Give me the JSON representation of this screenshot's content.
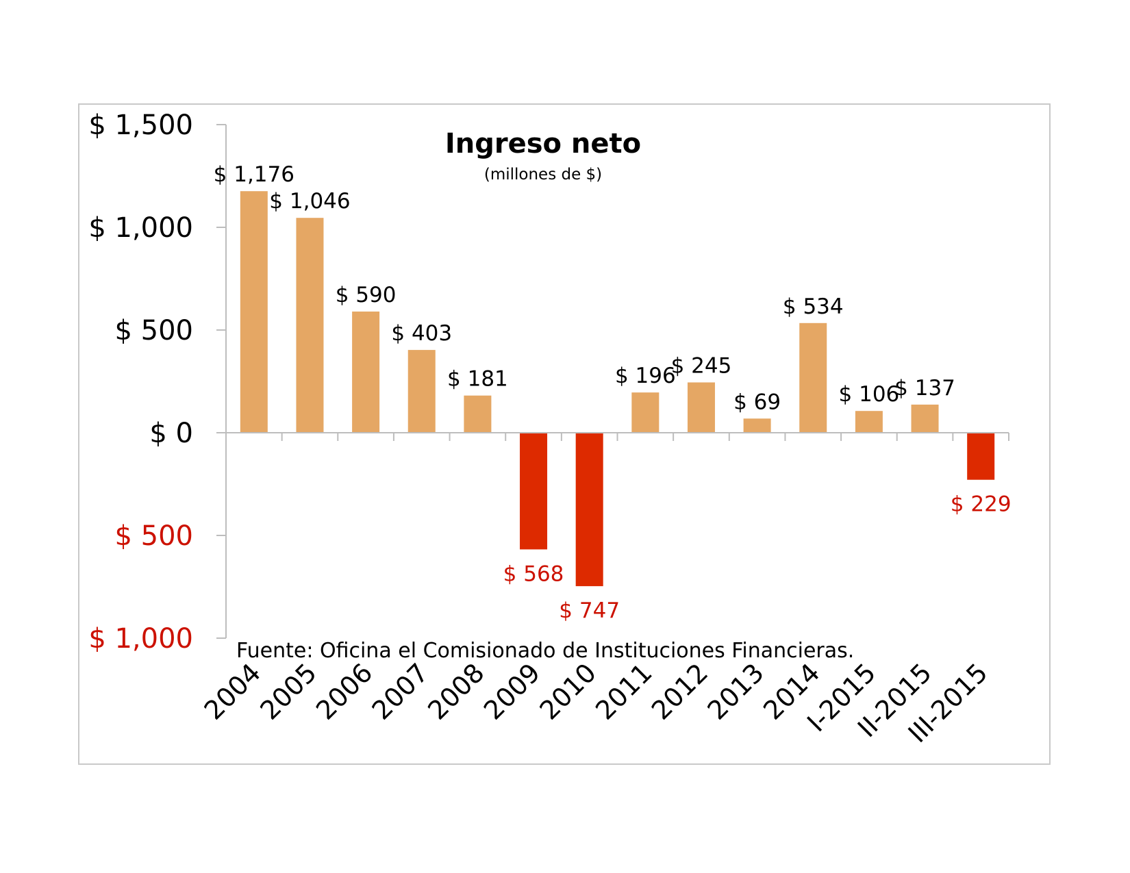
{
  "chart_data": {
    "type": "bar",
    "title": "Ingreso neto",
    "subtitle": "(millones de $)",
    "source": "Fuente: Oficina el Comisionado de Instituciones Financieras.",
    "categories": [
      "2004",
      "2005",
      "2006",
      "2007",
      "2008",
      "2009",
      "2010",
      "2011",
      "2012",
      "2013",
      "2014",
      "I-2015",
      "II-2015",
      "III-2015"
    ],
    "values": [
      1176,
      1046,
      590,
      403,
      181,
      -568,
      -747,
      196,
      245,
      69,
      534,
      106,
      137,
      -229
    ],
    "data_labels": [
      "$ 1,176",
      "$ 1,046",
      "$ 590",
      "$ 403",
      "$ 181",
      "$ 568",
      "$ 747",
      "$ 196",
      "$ 245",
      "$ 69",
      "$ 534",
      "$ 106",
      "$ 137",
      "$ 229"
    ],
    "yticks": [
      1500,
      1000,
      500,
      0,
      -500,
      -1000
    ],
    "ytick_labels": [
      "$ 1,500",
      "$ 1,000",
      "$ 500",
      "$ 0",
      "$ 500",
      "$ 1,000"
    ],
    "ylim": [
      -1000,
      1500
    ],
    "grid": false,
    "colors": {
      "positive_bar": "#E5A764",
      "negative_bar": "#DD2A00",
      "negative_text": "#CC1100",
      "axis": "#bdbdbd"
    }
  }
}
